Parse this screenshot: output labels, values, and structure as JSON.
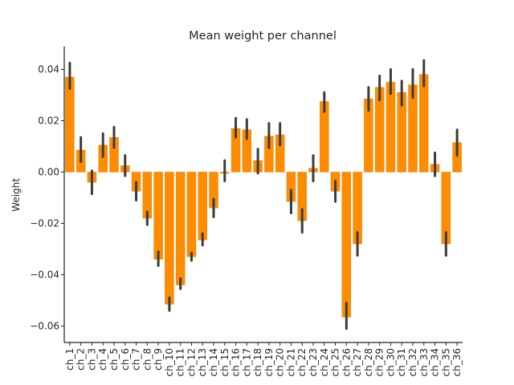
{
  "chart_data": {
    "type": "bar",
    "title": "Mean weight per channel",
    "xlabel": "",
    "ylabel": "Weight",
    "ylim": [
      -0.066,
      0.049
    ],
    "yticks": [
      0.04,
      0.02,
      0.0,
      -0.02,
      -0.04,
      -0.06
    ],
    "ytick_labels": [
      "0.04",
      "0.02",
      "0.00",
      "−0.02",
      "−0.04",
      "−0.06"
    ],
    "bar_color": "#ff8c00",
    "bar_edge_color": "#d97700",
    "errorbar_color": "#3b3b3b",
    "grid": false,
    "categories": [
      "ch_1",
      "ch_2",
      "ch_3",
      "ch_4",
      "ch_5",
      "ch_6",
      "ch_7",
      "ch_8",
      "ch_9",
      "ch_10",
      "ch_11",
      "ch_12",
      "ch_13",
      "ch_14",
      "ch_15",
      "ch_16",
      "ch_17",
      "ch_18",
      "ch_19",
      "ch_20",
      "ch_21",
      "ch_22",
      "ch_23",
      "ch_24",
      "ch_25",
      "ch_26",
      "ch_27",
      "ch_28",
      "ch_29",
      "ch_30",
      "ch_31",
      "ch_32",
      "ch_33",
      "ch_34",
      "ch_35",
      "ch_36"
    ],
    "values": [
      0.037,
      0.0085,
      -0.004,
      0.0105,
      0.0135,
      0.0025,
      -0.0075,
      -0.018,
      -0.034,
      -0.0515,
      -0.044,
      -0.033,
      -0.0265,
      -0.014,
      -0.0005,
      0.017,
      0.0165,
      0.0045,
      0.014,
      0.0145,
      -0.0115,
      -0.019,
      0.0015,
      0.0275,
      -0.0075,
      -0.0565,
      -0.028,
      0.0285,
      0.033,
      0.035,
      0.031,
      0.034,
      0.038,
      0.003,
      -0.028,
      0.0115
    ],
    "error_low": [
      0.0325,
      0.004,
      -0.0085,
      0.006,
      0.0095,
      -0.0015,
      -0.011,
      -0.0205,
      -0.0365,
      -0.054,
      -0.0455,
      -0.0345,
      -0.0285,
      -0.0175,
      -0.0035,
      0.0135,
      0.013,
      -0.0005,
      0.0095,
      0.0105,
      -0.016,
      -0.0235,
      -0.0035,
      0.0235,
      -0.0115,
      -0.061,
      -0.0325,
      0.024,
      0.028,
      0.0305,
      0.026,
      0.029,
      0.0335,
      -0.0015,
      -0.0325,
      0.0065
    ],
    "error_high": [
      0.0425,
      0.0135,
      0.0005,
      0.015,
      0.0175,
      0.0065,
      -0.004,
      -0.0155,
      -0.031,
      -0.049,
      -0.0415,
      -0.0315,
      -0.024,
      -0.0105,
      0.0045,
      0.021,
      0.0205,
      0.009,
      0.019,
      0.019,
      -0.007,
      -0.0145,
      0.0065,
      0.031,
      -0.0035,
      -0.051,
      -0.0235,
      0.033,
      0.0375,
      0.04,
      0.0355,
      0.04,
      0.0435,
      0.0075,
      -0.0235,
      0.0165
    ]
  }
}
